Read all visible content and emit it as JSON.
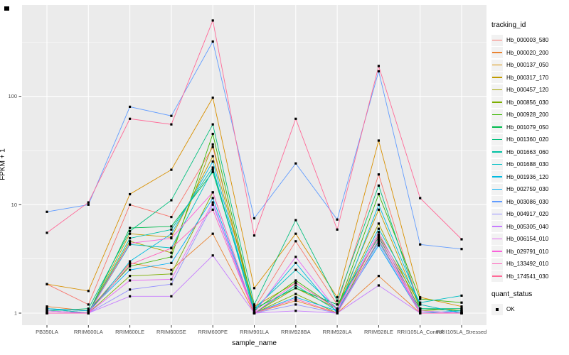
{
  "chart_data": {
    "type": "line",
    "title": "",
    "xlabel": "sample_name",
    "ylabel": "FPKM + 1",
    "y_scale": "log10",
    "y_ticks": [
      1,
      10,
      100
    ],
    "y_tick_labels": [
      "1",
      "10",
      "100"
    ],
    "y_minor_ticks": [
      3.162,
      31.62,
      316.2
    ],
    "ylim": [
      0.77,
      720
    ],
    "grid": "white major/minor gridlines on gray panel",
    "legend_position": "right",
    "point_shape": "filled-square",
    "point_color": "#000000",
    "categories": [
      "PB350LA",
      "RRIM600LA",
      "RRIM600LE",
      "RRIM600SE",
      "RRIM600PE",
      "RRIM901LA",
      "RRIM928BA",
      "RRIM928LA",
      "RRIM928LE",
      "RRII105LA_Control",
      "RRII105LA_Stressed"
    ],
    "series": [
      {
        "name": "Hb_000003_580",
        "color": "#F8766D",
        "values": [
          1.85,
          1.2,
          10,
          7.7,
          34,
          1.1,
          4.6,
          1.2,
          19,
          1.1,
          1.05
        ]
      },
      {
        "name": "Hb_000020_200",
        "color": "#EA8331",
        "values": [
          1.15,
          1.05,
          2.9,
          2.5,
          5.4,
          1.0,
          1.3,
          1.0,
          2.2,
          1.0,
          1.0
        ]
      },
      {
        "name": "Hb_000137_050",
        "color": "#D89000",
        "values": [
          1.85,
          1.6,
          12.5,
          21,
          97,
          1.7,
          5.4,
          1.4,
          39,
          1.4,
          1.15
        ]
      },
      {
        "name": "Hb_000317_170",
        "color": "#C09B00",
        "values": [
          1.1,
          1.0,
          5.4,
          5.0,
          28,
          1.15,
          1.9,
          1.1,
          9.0,
          1.1,
          1.05
        ]
      },
      {
        "name": "Hb_000457_120",
        "color": "#A3A500",
        "values": [
          1.0,
          1.0,
          4.6,
          3.6,
          36,
          1.0,
          1.7,
          1.1,
          6.7,
          1.05,
          1.1
        ]
      },
      {
        "name": "Hb_000856_030",
        "color": "#7CAE00",
        "values": [
          1.05,
          1.0,
          2.2,
          2.3,
          13,
          1.0,
          1.5,
          1.0,
          5.3,
          1.2,
          1.0
        ]
      },
      {
        "name": "Hb_000928_200",
        "color": "#39B600",
        "values": [
          1.1,
          1.05,
          2.7,
          3.3,
          45,
          1.05,
          2.0,
          1.1,
          12.5,
          1.35,
          1.25
        ]
      },
      {
        "name": "Hb_001079_050",
        "color": "#00BB4E",
        "values": [
          1.0,
          1.0,
          6.1,
          6.3,
          20,
          1.1,
          1.7,
          1.2,
          5.0,
          1.1,
          1.05
        ]
      },
      {
        "name": "Hb_001360_020",
        "color": "#00BF7D",
        "values": [
          1.05,
          1.1,
          5.7,
          11.0,
          55,
          1.2,
          7.2,
          1.3,
          15,
          1.1,
          1.1
        ]
      },
      {
        "name": "Hb_001663_060",
        "color": "#00C1A3",
        "values": [
          1.0,
          1.0,
          4.9,
          5.9,
          22,
          1.0,
          1.8,
          1.05,
          4.6,
          1.05,
          1.0
        ]
      },
      {
        "name": "Hb_001688_030",
        "color": "#00BFC4",
        "values": [
          1.1,
          1.0,
          4.3,
          4.0,
          21,
          1.1,
          2.5,
          1.1,
          6.0,
          1.25,
          1.45
        ]
      },
      {
        "name": "Hb_001936_120",
        "color": "#00BAE0",
        "values": [
          1.05,
          1.0,
          3.0,
          5.4,
          25,
          1.05,
          2.9,
          1.0,
          10,
          1.2,
          1.0
        ]
      },
      {
        "name": "Hb_002759_030",
        "color": "#00B0F6",
        "values": [
          1.1,
          1.05,
          2.5,
          2.9,
          11.5,
          1.0,
          1.4,
          1.05,
          4.2,
          1.0,
          1.05
        ]
      },
      {
        "name": "Hb_003086_030",
        "color": "#619CFF",
        "values": [
          8.6,
          10,
          80,
          66,
          320,
          7.5,
          24,
          7.3,
          170,
          4.3,
          3.9
        ]
      },
      {
        "name": "Hb_004917_020",
        "color": "#9590FF",
        "values": [
          1.0,
          1.0,
          1.65,
          1.85,
          10,
          1.0,
          1.2,
          1.0,
          4.4,
          1.0,
          1.0
        ]
      },
      {
        "name": "Hb_005305_040",
        "color": "#C77CFF",
        "values": [
          1.0,
          1.0,
          1.43,
          1.43,
          3.4,
          1.0,
          1.05,
          1.0,
          1.8,
          1.0,
          1.0
        ]
      },
      {
        "name": "Hb_006154_010",
        "color": "#E76BF3",
        "values": [
          1.05,
          1.0,
          2.0,
          2.05,
          10.5,
          1.0,
          3.3,
          1.05,
          5.6,
          1.05,
          1.0
        ]
      },
      {
        "name": "Hb_029791_010",
        "color": "#FA62DB",
        "values": [
          1.0,
          1.0,
          4.4,
          4.9,
          13,
          1.0,
          1.9,
          1.1,
          5.2,
          1.0,
          1.0
        ]
      },
      {
        "name": "Hb_133492_010",
        "color": "#FF62BC",
        "values": [
          1.0,
          1.0,
          2.8,
          3.97,
          9,
          1.0,
          1.35,
          1.0,
          4.8,
          1.0,
          1.0
        ]
      },
      {
        "name": "Hb_174541_030",
        "color": "#FF6A98",
        "values": [
          5.5,
          10.5,
          62,
          55,
          500,
          5.2,
          62,
          5.9,
          190,
          11.5,
          4.8
        ]
      }
    ]
  },
  "legend": {
    "title": "tracking_id"
  },
  "quant_legend": {
    "title": "quant_status",
    "items": [
      {
        "label": "OK"
      }
    ]
  },
  "colors": {
    "panel_bg": "#EBEBEB",
    "grid": "#FFFFFF",
    "axis_text": "#4D4D4D",
    "tick_mark": "#333333",
    "point": "#000000",
    "legend_key_bg": "#F2F2F2"
  }
}
